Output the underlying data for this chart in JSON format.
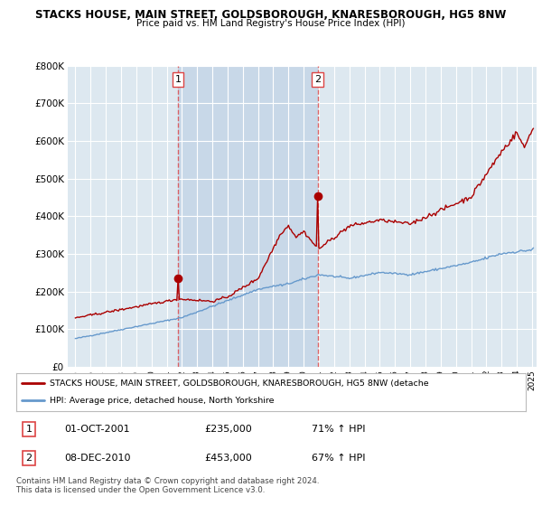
{
  "title_line1": "STACKS HOUSE, MAIN STREET, GOLDSBOROUGH, KNARESBOROUGH, HG5 8NW",
  "title_line2": "Price paid vs. HM Land Registry's House Price Index (HPI)",
  "ylim": [
    0,
    800000
  ],
  "yticks": [
    0,
    100000,
    200000,
    300000,
    400000,
    500000,
    600000,
    700000,
    800000
  ],
  "ytick_labels": [
    "£0",
    "£100K",
    "£200K",
    "£300K",
    "£400K",
    "£500K",
    "£600K",
    "£700K",
    "£800K"
  ],
  "sale1_date": 2001.75,
  "sale1_price": 235000,
  "sale2_date": 2010.92,
  "sale2_price": 453000,
  "legend_line1": "STACKS HOUSE, MAIN STREET, GOLDSBOROUGH, KNARESBOROUGH, HG5 8NW (detache",
  "legend_line2": "HPI: Average price, detached house, North Yorkshire",
  "table_row1": [
    "1",
    "01-OCT-2001",
    "£235,000",
    "71% ↑ HPI"
  ],
  "table_row2": [
    "2",
    "08-DEC-2010",
    "£453,000",
    "67% ↑ HPI"
  ],
  "footer": "Contains HM Land Registry data © Crown copyright and database right 2024.\nThis data is licensed under the Open Government Licence v3.0.",
  "line_color_red": "#aa0000",
  "line_color_blue": "#6699cc",
  "bg_color": "#dde8f0",
  "bg_color_shaded": "#c8d8e8",
  "grid_color": "#ffffff",
  "outer_bg": "#f0f4f8",
  "vline_color": "#dd4444",
  "xstart": 1994.5,
  "xend": 2025.3
}
